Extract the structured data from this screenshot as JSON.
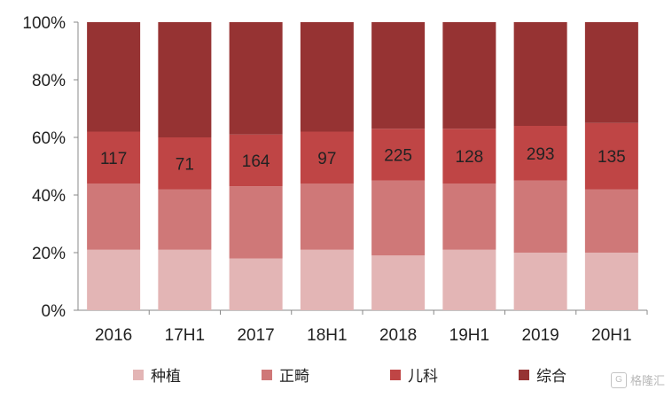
{
  "chart_data": {
    "type": "bar",
    "stacked": true,
    "categories": [
      "2016",
      "17H1",
      "2017",
      "18H1",
      "2018",
      "19H1",
      "2019",
      "20H1"
    ],
    "ylim": [
      0,
      100
    ],
    "yticks": [
      "0%",
      "20%",
      "40%",
      "60%",
      "80%",
      "100%"
    ],
    "series": [
      {
        "name": "种植",
        "color": "#e3b5b5",
        "values": [
          21,
          21,
          18,
          21,
          19,
          21,
          20,
          20
        ]
      },
      {
        "name": "正畸",
        "color": "#cf7878",
        "values": [
          23,
          21,
          25,
          23,
          26,
          23,
          25,
          22
        ]
      },
      {
        "name": "儿科",
        "color": "#bf4545",
        "values": [
          18,
          18,
          18,
          18,
          18,
          19,
          19,
          23
        ]
      },
      {
        "name": "综合",
        "color": "#963333",
        "values": [
          38,
          40,
          39,
          38,
          37,
          37,
          36,
          35
        ]
      }
    ],
    "data_labels": {
      "series": "儿科",
      "values": [
        "117",
        "71",
        "164",
        "97",
        "225",
        "128",
        "293",
        "135"
      ]
    },
    "legend_position": "bottom",
    "grid": false
  },
  "watermark": {
    "icon": "gelonghui-logo-icon",
    "text": "格隆汇"
  }
}
